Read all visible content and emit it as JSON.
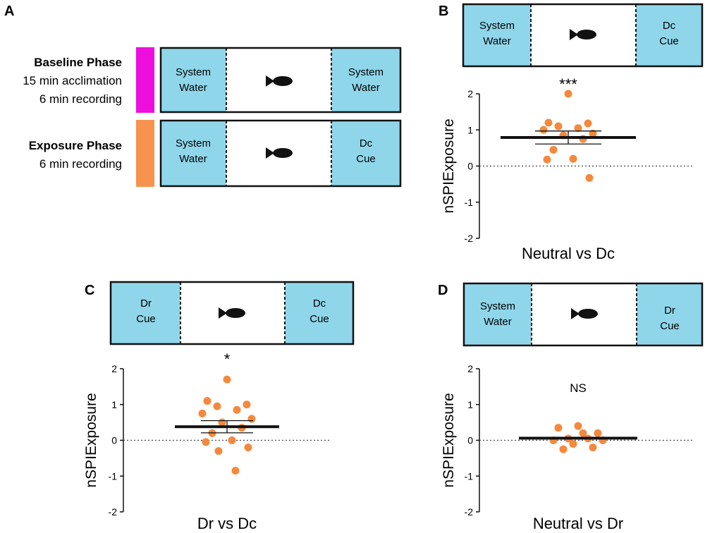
{
  "colors": {
    "cue": "#8fd6ea",
    "fish": "#111111",
    "baseline_bar": "#ee0ee0",
    "exposure_bar": "#f7934f",
    "points": "#f4893d",
    "line": "#111111"
  },
  "icons": [
    "fish-icon"
  ],
  "panel_letters": [
    "A",
    "B",
    "C",
    "D"
  ],
  "panel_a": {
    "baseline": {
      "title": "Baseline Phase",
      "line1": "15 min acclimation",
      "line2": "6 min recording",
      "left_line1": "System",
      "left_line2": "Water",
      "right_line1": "System",
      "right_line2": "Water"
    },
    "exposure": {
      "title": "Exposure Phase",
      "line1": "6 min recording",
      "left_line1": "System",
      "left_line2": "Water",
      "right_line1": "Dc",
      "right_line2": "Cue"
    }
  },
  "chart_data": [
    {
      "panel": "B",
      "type": "scatter",
      "subtype": "dot plot with mean and SEM",
      "setup": {
        "left_line1": "System",
        "left_line2": "Water",
        "right_line1": "Dc",
        "right_line2": "Cue"
      },
      "significance": "***",
      "xlabel": "Neutral vs Dc",
      "ylabel": "nSPIExposure",
      "ylim": [
        -2,
        2
      ],
      "yticks": [
        "-2",
        "-1",
        "0",
        "1",
        "2"
      ],
      "reference_line": 0,
      "points": [
        2.0,
        1.2,
        1.18,
        1.1,
        1.05,
        1.0,
        0.9,
        0.85,
        0.75,
        0.45,
        0.2,
        0.18,
        -0.33
      ],
      "mean": 0.79,
      "sem": 0.18
    },
    {
      "panel": "C",
      "type": "scatter",
      "subtype": "dot plot with mean and SEM",
      "setup": {
        "left_line1": "Dr",
        "left_line2": "Cue",
        "right_line1": "Dc",
        "right_line2": "Cue"
      },
      "significance": "*",
      "xlabel": "Dr vs Dc",
      "ylabel": "nSPIExposure",
      "ylim": [
        -2,
        2
      ],
      "yticks": [
        "-2",
        "-1",
        "0",
        "1",
        "2"
      ],
      "reference_line": 0,
      "points": [
        1.7,
        1.1,
        1.0,
        0.95,
        0.85,
        0.75,
        0.6,
        0.5,
        0.35,
        0.2,
        0.0,
        -0.05,
        -0.2,
        -0.3,
        -0.85
      ],
      "mean": 0.38,
      "sem": 0.17
    },
    {
      "panel": "D",
      "type": "scatter",
      "subtype": "dot plot with mean and SEM",
      "setup": {
        "left_line1": "System",
        "left_line2": "Water",
        "right_line1": "Dr",
        "right_line2": "Cue"
      },
      "significance": "NS",
      "xlabel": "Neutral vs Dr",
      "ylabel": "nSPIExposure",
      "ylim": [
        -2,
        2
      ],
      "yticks": [
        "-2",
        "-1",
        "0",
        "1",
        "2"
      ],
      "reference_line": 0,
      "points": [
        0.4,
        0.35,
        0.2,
        0.05,
        0.05,
        0.0,
        0.0,
        -0.1,
        -0.2,
        -0.25,
        0.2
      ],
      "mean": 0.06,
      "sem": 0.05
    }
  ]
}
